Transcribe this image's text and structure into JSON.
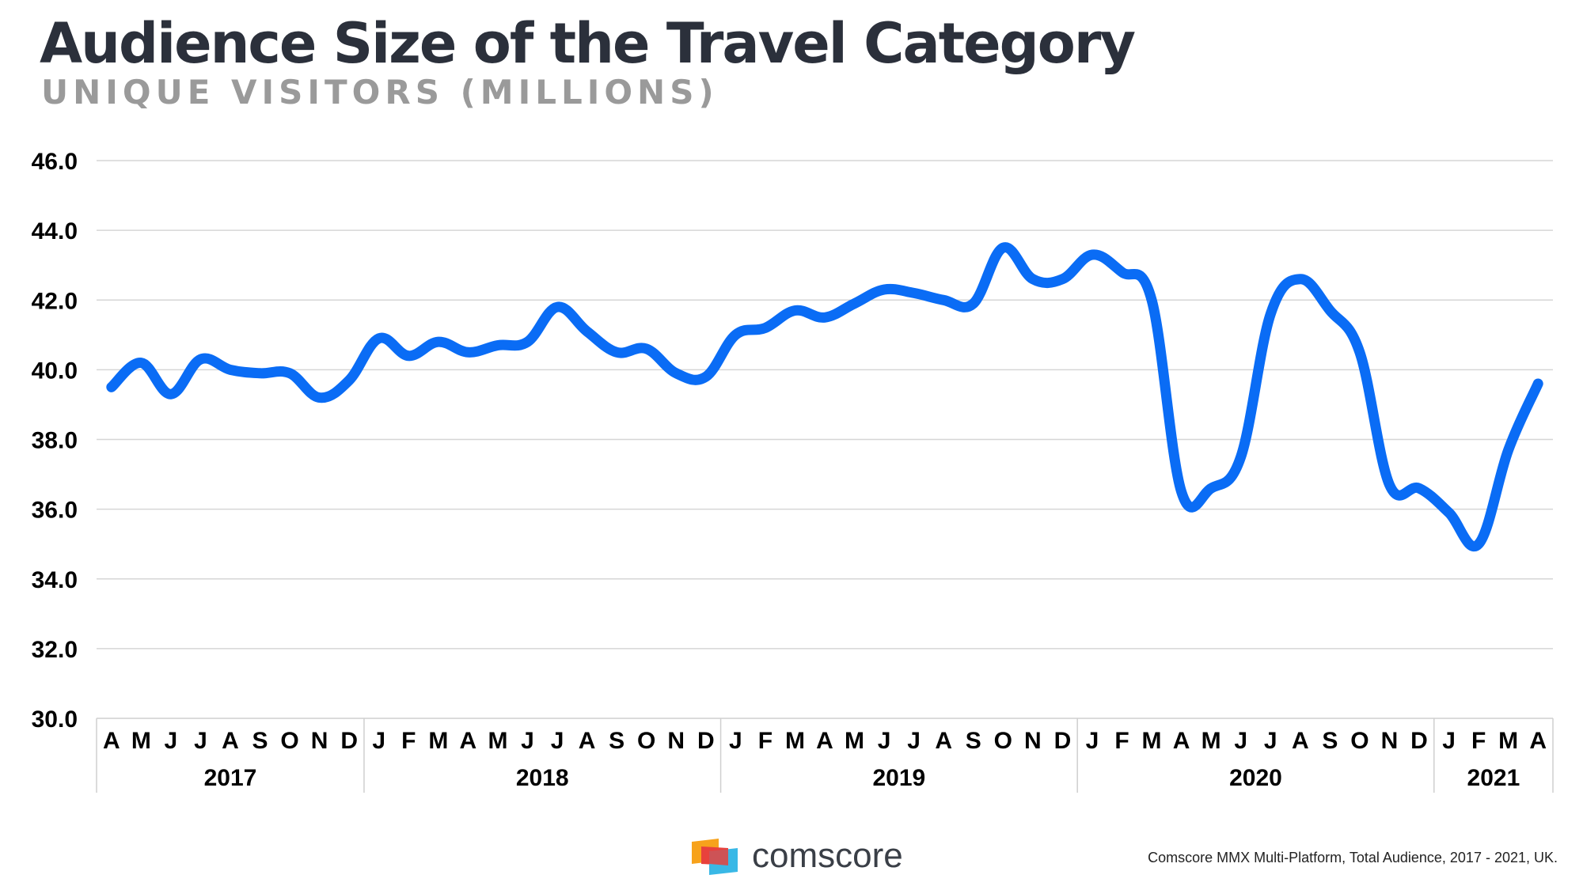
{
  "title": "Audience Size of the Travel Category",
  "subtitle": "UNIQUE VISITORS (MILLIONS)",
  "chart_data": {
    "type": "line",
    "title": "Audience Size of the Travel Category",
    "subtitle": "UNIQUE VISITORS (MILLIONS)",
    "ylabel": "UNIQUE VISITORS (MILLIONS)",
    "ylim": [
      30,
      46
    ],
    "yticks": [
      "30.0",
      "32.0",
      "34.0",
      "36.0",
      "38.0",
      "40.0",
      "42.0",
      "44.0",
      "46.0"
    ],
    "grid": true,
    "x": [
      "A",
      "M",
      "J",
      "J",
      "A",
      "S",
      "O",
      "N",
      "D",
      "J",
      "F",
      "M",
      "A",
      "M",
      "J",
      "J",
      "A",
      "S",
      "O",
      "N",
      "D",
      "J",
      "F",
      "M",
      "A",
      "M",
      "J",
      "J",
      "A",
      "S",
      "O",
      "N",
      "D",
      "J",
      "F",
      "M",
      "A",
      "M",
      "J",
      "J",
      "A",
      "S",
      "O",
      "N",
      "D",
      "J",
      "F",
      "M",
      "A"
    ],
    "years": [
      {
        "label": "2017",
        "months": 9
      },
      {
        "label": "2018",
        "months": 12
      },
      {
        "label": "2019",
        "months": 12
      },
      {
        "label": "2020",
        "months": 12
      },
      {
        "label": "2021",
        "months": 4
      }
    ],
    "series": [
      {
        "color": "#0a6cf5",
        "values": [
          39.5,
          40.2,
          39.3,
          40.3,
          40.0,
          39.9,
          39.9,
          39.2,
          39.7,
          40.9,
          40.4,
          40.8,
          40.5,
          40.7,
          40.8,
          41.8,
          41.1,
          40.5,
          40.6,
          39.9,
          39.8,
          41.0,
          41.2,
          41.7,
          41.5,
          41.9,
          42.3,
          42.2,
          42.0,
          41.9,
          43.5,
          42.6,
          42.6,
          43.3,
          42.8,
          42.0,
          36.5,
          36.6,
          37.5,
          41.6,
          42.6,
          41.7,
          40.5,
          36.7,
          36.6,
          35.9,
          35.0,
          37.7,
          39.6
        ]
      }
    ],
    "logo_text": "comscore",
    "source": "Comscore MMX Multi-Platform, Total Audience, 2017 - 2021, UK."
  }
}
